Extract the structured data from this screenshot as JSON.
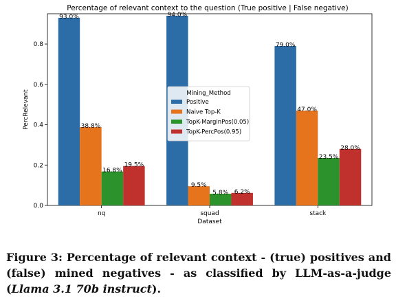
{
  "chart_data": {
    "type": "bar",
    "title": "Percentage of relevant context to the question (True positive | False negative)",
    "xlabel": "Dataset",
    "ylabel": "PercRelevant",
    "ylim": [
      0,
      0.95
    ],
    "yticks": [
      "0.0",
      "0.2",
      "0.4",
      "0.6",
      "0.8"
    ],
    "categories": [
      "nq",
      "squad",
      "stack"
    ],
    "legend_title": "Mining_Method",
    "legend_position": "center",
    "series": [
      {
        "name": "Positive",
        "color": "#2c6da8",
        "values": [
          0.93,
          0.94,
          0.79
        ],
        "labels": [
          "93.0%",
          "94.0%",
          "79.0%"
        ]
      },
      {
        "name": "Naive Top-K",
        "color": "#e6741c",
        "values": [
          0.388,
          0.095,
          0.47
        ],
        "labels": [
          "38.8%",
          "9.5%",
          "47.0%"
        ]
      },
      {
        "name": "TopK-MarginPos(0.05)",
        "color": "#2c922c",
        "values": [
          0.168,
          0.058,
          0.235
        ],
        "labels": [
          "16.8%",
          "5.8%",
          "23.5%"
        ]
      },
      {
        "name": "TopK-PercPos(0.95)",
        "color": "#c0302c",
        "values": [
          0.195,
          0.062,
          0.28
        ],
        "labels": [
          "19.5%",
          "6.2%",
          "28.0%"
        ]
      }
    ]
  },
  "caption": {
    "main": "Figure 3: Percentage of relevant context - (true) positives and (false) mined negatives - as classified by LLM-as-a-judge (",
    "italic": "Llama 3.1 70b instruct",
    "end": ")."
  }
}
